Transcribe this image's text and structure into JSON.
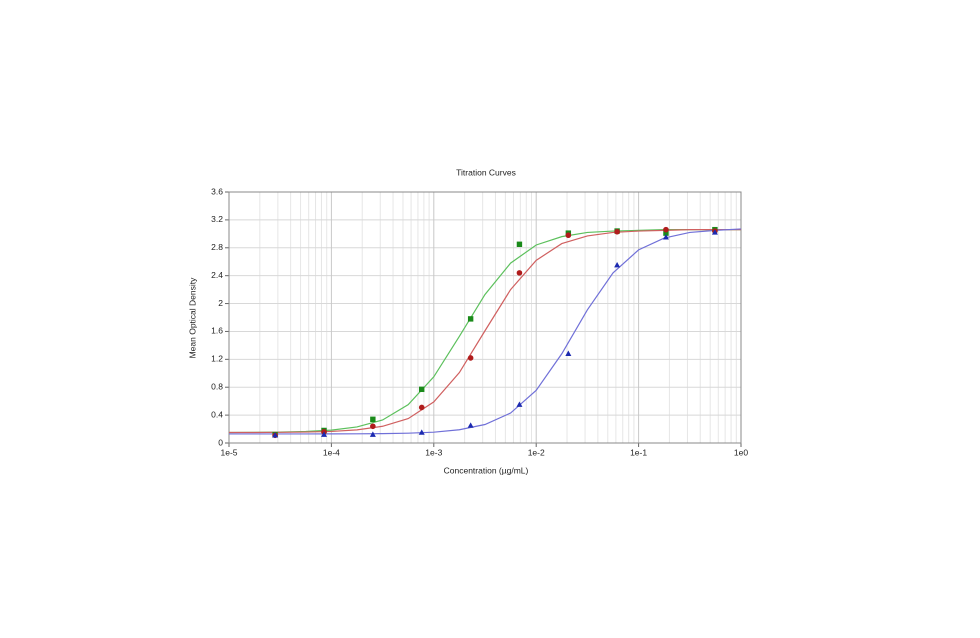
{
  "chart_data": {
    "type": "scatter",
    "title": "Titration Curves",
    "x_label": "Concentration (µg/mL)",
    "y_label": "Mean Optical Density",
    "log_x": true,
    "grid": true,
    "xlim": [
      1e-05,
      1
    ],
    "ylim": [
      0,
      3.6
    ],
    "xticks": [
      {
        "value": 1e-05,
        "label": "1e-5"
      },
      {
        "value": 0.0001,
        "label": "1e-4"
      },
      {
        "value": 0.001,
        "label": "1e-3"
      },
      {
        "value": 0.01,
        "label": "1e-2"
      },
      {
        "value": 0.1,
        "label": "1e-1"
      },
      {
        "value": 1,
        "label": "1e0"
      }
    ],
    "yticks": [
      0,
      0.4,
      0.8,
      1.2,
      1.6,
      2,
      2.4,
      2.8,
      3.2,
      3.6
    ],
    "x": [
      2.82e-05,
      8.47e-05,
      0.000254,
      0.000762,
      0.00229,
      0.00686,
      0.0206,
      0.0617,
      0.185,
      0.556
    ],
    "curve_x": [
      1e-05,
      1.778e-05,
      3.162e-05,
      5.623e-05,
      0.0001,
      0.0001778,
      0.0003162,
      0.0005623,
      0.001,
      0.001778,
      0.003162,
      0.005623,
      0.01,
      0.01778,
      0.03162,
      0.05623,
      0.1,
      0.1778,
      0.3162,
      0.5623,
      1
    ],
    "series": [
      {
        "color": "#1a8a1a",
        "marker": "square",
        "values": [
          0.12,
          0.18,
          0.34,
          0.77,
          1.78,
          2.85,
          3.01,
          3.04,
          3.01,
          3.06
        ],
        "curve_color": "#5cc05c",
        "curve": [
          0.151,
          0.153,
          0.156,
          0.165,
          0.185,
          0.23,
          0.33,
          0.55,
          0.95,
          1.53,
          2.13,
          2.58,
          2.84,
          2.96,
          3.02,
          3.04,
          3.05,
          3.06,
          3.06,
          3.06,
          3.06
        ]
      },
      {
        "color": "#b01c1c",
        "marker": "circle",
        "values": [
          0.11,
          0.16,
          0.24,
          0.51,
          1.22,
          2.44,
          2.98,
          3.03,
          3.06,
          3.04
        ],
        "curve_color": "#d06060",
        "curve": [
          0.151,
          0.151,
          0.153,
          0.157,
          0.166,
          0.188,
          0.24,
          0.35,
          0.59,
          1.01,
          1.61,
          2.2,
          2.62,
          2.86,
          2.97,
          3.02,
          3.04,
          3.05,
          3.06,
          3.06,
          3.06
        ]
      },
      {
        "color": "#1c2ab0",
        "marker": "triangle",
        "values": [
          0.11,
          0.12,
          0.12,
          0.15,
          0.25,
          0.55,
          1.28,
          2.55,
          2.95,
          3.02
        ],
        "curve_color": "#7070d8",
        "curve": [
          0.13,
          0.13,
          0.13,
          0.13,
          0.131,
          0.132,
          0.135,
          0.141,
          0.155,
          0.19,
          0.265,
          0.43,
          0.755,
          1.28,
          1.91,
          2.44,
          2.77,
          2.94,
          3.02,
          3.05,
          3.07
        ]
      }
    ]
  }
}
